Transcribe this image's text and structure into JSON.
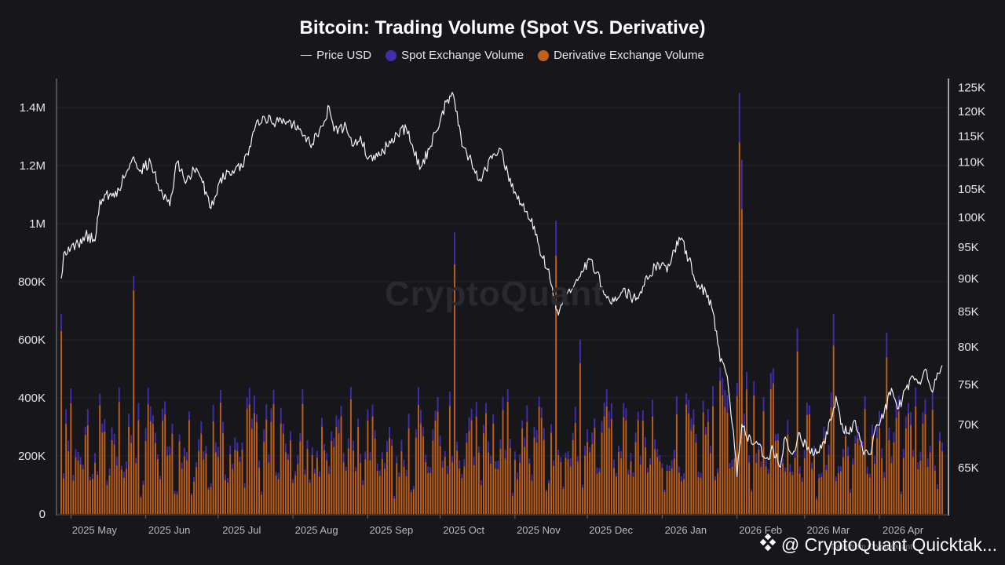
{
  "chart_data": {
    "type": "bar+line",
    "title": "Bitcoin: Trading Volume (Spot VS. Derivative)",
    "legend": [
      {
        "label": "Price USD",
        "kind": "line",
        "color": "#e6e6e6"
      },
      {
        "label": "Spot Exchange Volume",
        "kind": "dot",
        "color": "#3f2fb0"
      },
      {
        "label": "Derivative Exchange Volume",
        "kind": "dot",
        "color": "#c0601a"
      }
    ],
    "left_axis": {
      "min": 0,
      "max": 1500000,
      "ticks": [
        0,
        200000,
        400000,
        600000,
        800000,
        1000000,
        1200000,
        1400000
      ],
      "tick_labels": [
        "0",
        "200K",
        "400K",
        "600K",
        "800K",
        "1M",
        "1.2M",
        "1.4M"
      ]
    },
    "right_axis": {
      "min": 60000,
      "max": 127000,
      "scale": "log",
      "ticks": [
        65000,
        70000,
        75000,
        80000,
        85000,
        90000,
        95000,
        100000,
        105000,
        110000,
        115000,
        120000,
        125000
      ],
      "tick_labels": [
        "65K",
        "70K",
        "75K",
        "80K",
        "85K",
        "90K",
        "95K",
        "100K",
        "105K",
        "110K",
        "115K",
        "120K",
        "125K"
      ]
    },
    "x_axis": {
      "start": "2025-04-27",
      "days": 365,
      "month_labels": [
        {
          "label": "2025 May",
          "day": 4
        },
        {
          "label": "2025 Jun",
          "day": 35
        },
        {
          "label": "2025 Jul",
          "day": 65
        },
        {
          "label": "2025 Aug",
          "day": 96
        },
        {
          "label": "2025 Sep",
          "day": 127
        },
        {
          "label": "2025 Oct",
          "day": 157
        },
        {
          "label": "2025 Nov",
          "day": 188
        },
        {
          "label": "2025 Dec",
          "day": 218
        },
        {
          "label": "2026 Jan",
          "day": 249
        },
        {
          "label": "2026 Feb",
          "day": 280
        },
        {
          "label": "2026 Mar",
          "day": 308
        },
        {
          "label": "2026 Apr",
          "day": 339
        }
      ]
    },
    "price_series": {
      "name": "Price USD",
      "points": [
        [
          0,
          90000
        ],
        [
          1,
          94000
        ],
        [
          7,
          95500
        ],
        [
          10,
          97000
        ],
        [
          14,
          96000
        ],
        [
          16,
          103000
        ],
        [
          18,
          104000
        ],
        [
          22,
          103500
        ],
        [
          27,
          108000
        ],
        [
          30,
          111000
        ],
        [
          33,
          108500
        ],
        [
          37,
          110000
        ],
        [
          40,
          106000
        ],
        [
          45,
          102000
        ],
        [
          48,
          110000
        ],
        [
          52,
          106500
        ],
        [
          55,
          108500
        ],
        [
          58,
          107000
        ],
        [
          62,
          101500
        ],
        [
          66,
          107000
        ],
        [
          72,
          108500
        ],
        [
          75,
          109000
        ],
        [
          78,
          113000
        ],
        [
          81,
          118000
        ],
        [
          84,
          119000
        ],
        [
          88,
          117500
        ],
        [
          92,
          118500
        ],
        [
          96,
          117500
        ],
        [
          100,
          115000
        ],
        [
          104,
          113500
        ],
        [
          108,
          117000
        ],
        [
          111,
          121000
        ],
        [
          113,
          116000
        ],
        [
          118,
          117000
        ],
        [
          121,
          113000
        ],
        [
          124,
          115000
        ],
        [
          127,
          110500
        ],
        [
          131,
          111000
        ],
        [
          135,
          113000
        ],
        [
          139,
          115500
        ],
        [
          143,
          116500
        ],
        [
          146,
          112000
        ],
        [
          149,
          109000
        ],
        [
          153,
          113000
        ],
        [
          157,
          118000
        ],
        [
          160,
          122500
        ],
        [
          162,
          124000
        ],
        [
          164,
          120000
        ],
        [
          166,
          113000
        ],
        [
          170,
          110000
        ],
        [
          173,
          106500
        ],
        [
          176,
          108500
        ],
        [
          179,
          111500
        ],
        [
          182,
          112500
        ],
        [
          185,
          108000
        ],
        [
          188,
          104500
        ],
        [
          191,
          102000
        ],
        [
          193,
          101000
        ],
        [
          196,
          98500
        ],
        [
          199,
          93500
        ],
        [
          202,
          91500
        ],
        [
          204,
          86500
        ],
        [
          206,
          84500
        ],
        [
          208,
          87000
        ],
        [
          212,
          88500
        ],
        [
          216,
          91000
        ],
        [
          219,
          93000
        ],
        [
          222,
          91000
        ],
        [
          225,
          87500
        ],
        [
          229,
          86500
        ],
        [
          233,
          88500
        ],
        [
          236,
          87000
        ],
        [
          240,
          88000
        ],
        [
          244,
          90500
        ],
        [
          246,
          92000
        ],
        [
          249,
          92500
        ],
        [
          251,
          91000
        ],
        [
          254,
          94500
        ],
        [
          257,
          96500
        ],
        [
          260,
          93000
        ],
        [
          263,
          89500
        ],
        [
          267,
          88000
        ],
        [
          270,
          85000
        ],
        [
          273,
          78000
        ],
        [
          276,
          76000
        ],
        [
          278,
          70000
        ],
        [
          280,
          64000
        ],
        [
          282,
          70000
        ],
        [
          284,
          68500
        ],
        [
          288,
          68000
        ],
        [
          292,
          66000
        ],
        [
          295,
          67000
        ],
        [
          298,
          65000
        ],
        [
          300,
          68500
        ],
        [
          303,
          66500
        ],
        [
          306,
          69000
        ],
        [
          309,
          67000
        ],
        [
          312,
          66500
        ],
        [
          316,
          68000
        ],
        [
          319,
          70500
        ],
        [
          321,
          73500
        ],
        [
          323,
          70000
        ],
        [
          326,
          69000
        ],
        [
          329,
          70500
        ],
        [
          332,
          67000
        ],
        [
          335,
          66500
        ],
        [
          338,
          70000
        ],
        [
          341,
          71500
        ],
        [
          344,
          74500
        ],
        [
          347,
          72000
        ],
        [
          350,
          74500
        ],
        [
          353,
          76000
        ],
        [
          356,
          75000
        ],
        [
          358,
          77000
        ],
        [
          361,
          74000
        ],
        [
          363,
          76500
        ],
        [
          365,
          77500
        ]
      ]
    },
    "volume_series": {
      "spot_color": "#3f2fb0",
      "derivative_color": "#c0601a",
      "spikes": [
        [
          0,
          690000,
          630000
        ],
        [
          30,
          820000,
          770000
        ],
        [
          163,
          970000,
          860000
        ],
        [
          205,
          1010000,
          890000
        ],
        [
          281,
          1450000,
          1280000
        ],
        [
          282,
          1220000,
          1050000
        ],
        [
          215,
          600000,
          520000
        ],
        [
          320,
          690000,
          580000
        ],
        [
          305,
          640000,
          560000
        ],
        [
          342,
          625000,
          540000
        ]
      ]
    }
  },
  "brand": {
    "text": "@ CryptoQuant Quicktak...",
    "sub": "Data from CryptoQuant",
    "watermark": "CryptoQuant"
  }
}
